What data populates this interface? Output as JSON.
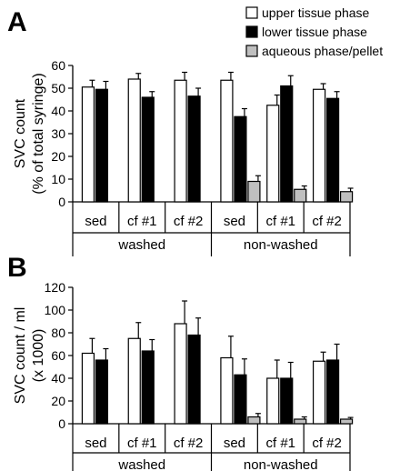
{
  "legend": [
    {
      "name": "upper tissue phase",
      "color": "#ffffff"
    },
    {
      "name": "lower tissue phase",
      "color": "#000000"
    },
    {
      "name": "aqueous phase/pellet",
      "color": "#bfbfbf"
    }
  ],
  "chart_data": [
    {
      "panel": "A",
      "type": "bar",
      "ylabel_line1": "SVC count",
      "ylabel_line2": "(% of total syringe)",
      "ylim": [
        0,
        60
      ],
      "yticks": [
        0,
        10,
        20,
        30,
        40,
        50,
        60
      ],
      "categories": [
        "sed",
        "cf #1",
        "cf #2",
        "sed",
        "cf #1",
        "cf #2"
      ],
      "groups": [
        {
          "label": "washed",
          "span": [
            0,
            2
          ]
        },
        {
          "label": "non-washed",
          "span": [
            3,
            5
          ]
        }
      ],
      "series": [
        {
          "name": "upper tissue phase",
          "values": [
            50.5,
            54,
            53.5,
            53.5,
            42.5,
            49.5
          ],
          "errors": [
            3,
            2.5,
            3.5,
            3.5,
            4.5,
            2.5
          ]
        },
        {
          "name": "lower tissue phase",
          "values": [
            49.5,
            46,
            46.5,
            37.5,
            51,
            45.5
          ],
          "errors": [
            3.5,
            2.5,
            3.5,
            3.5,
            4.5,
            3
          ]
        },
        {
          "name": "aqueous phase/pellet",
          "values": [
            null,
            null,
            null,
            9,
            5.5,
            4.5
          ],
          "errors": [
            null,
            null,
            null,
            2.5,
            1.5,
            1.5
          ]
        }
      ]
    },
    {
      "panel": "B",
      "type": "bar",
      "ylabel_line1": "SVC count / ml",
      "ylabel_line2": "(x 1000)",
      "ylim": [
        0,
        120
      ],
      "yticks": [
        0,
        20,
        40,
        60,
        80,
        100,
        120
      ],
      "categories": [
        "sed",
        "cf #1",
        "cf #2",
        "sed",
        "cf #1",
        "cf #2"
      ],
      "groups": [
        {
          "label": "washed",
          "span": [
            0,
            2
          ]
        },
        {
          "label": "non-washed",
          "span": [
            3,
            5
          ]
        }
      ],
      "series": [
        {
          "name": "upper tissue phase",
          "values": [
            62,
            75,
            88,
            58,
            40,
            55
          ],
          "errors": [
            13,
            14,
            20,
            19,
            16,
            8
          ]
        },
        {
          "name": "lower tissue phase",
          "values": [
            56,
            64,
            78,
            43,
            40,
            56
          ],
          "errors": [
            10,
            10,
            15,
            14,
            14,
            14
          ]
        },
        {
          "name": "aqueous phase/pellet",
          "values": [
            null,
            null,
            null,
            6,
            4,
            4
          ],
          "errors": [
            null,
            null,
            null,
            3,
            2,
            1.5
          ]
        }
      ]
    }
  ]
}
